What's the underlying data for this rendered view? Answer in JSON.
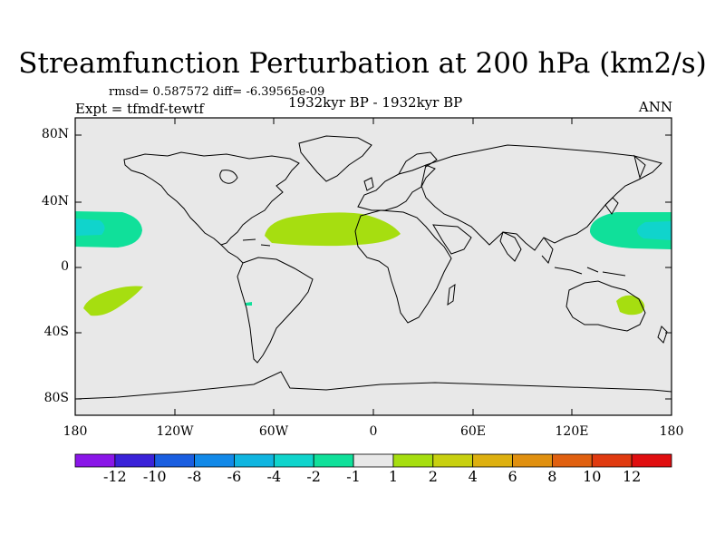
{
  "title": "Streamfunction Perturbation at 200 hPa (km2/s)",
  "stats": "rmsd= 0.587572  diff= -6.39565e-09",
  "experiment": "Expt = tfmdf-tewtf",
  "period": "1932kyr BP - 1932kyr BP",
  "season": "ANN",
  "lat_labels": [
    "80N",
    "40N",
    "0",
    "40S",
    "80S"
  ],
  "lon_labels": [
    "180",
    "120W",
    "60W",
    "0",
    "60E",
    "120E",
    "180"
  ],
  "colorbar": {
    "labels": [
      "-12",
      "-10",
      "-8",
      "-6",
      "-4",
      "-2",
      "-1",
      "1",
      "2",
      "4",
      "6",
      "8",
      "10",
      "12"
    ],
    "colors": [
      "#8a16e8",
      "#3a22d8",
      "#1a5ee0",
      "#1289e8",
      "#10b5e0",
      "#10d4cc",
      "#10e09a",
      "#e8e8e8",
      "#a6de10",
      "#c8d010",
      "#ddb010",
      "#e09010",
      "#e06010",
      "#e03a10",
      "#e00e10"
    ]
  },
  "background_color": "#e8e8e8",
  "anomalies": [
    {
      "name": "north-pacific-west",
      "level": "-2"
    },
    {
      "name": "north-pacific-west-core",
      "level": "-4"
    },
    {
      "name": "north-pacific-east",
      "level": "-2"
    },
    {
      "name": "north-pacific-east-core",
      "level": "-4"
    },
    {
      "name": "north-atlantic-africa",
      "level": "2"
    },
    {
      "name": "south-pacific",
      "level": "2"
    },
    {
      "name": "australia",
      "level": "2"
    },
    {
      "name": "south-america-patch",
      "level": "-2"
    }
  ]
}
